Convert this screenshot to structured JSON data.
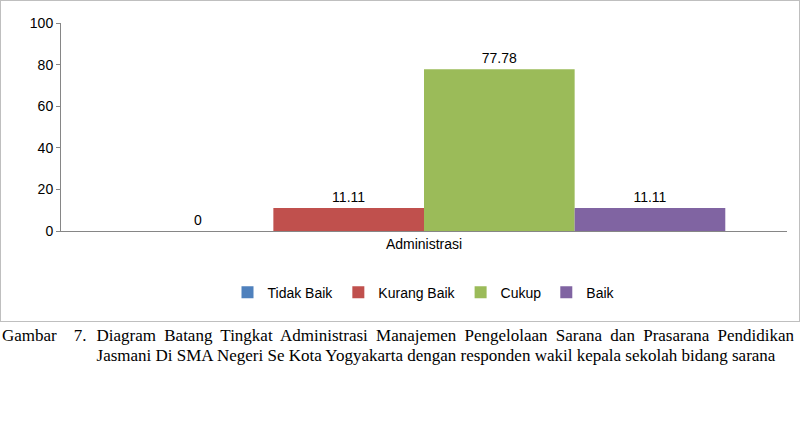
{
  "chart_data": {
    "type": "bar",
    "categories": [
      "Administrasi"
    ],
    "series": [
      {
        "name": "Tidak Baik",
        "color": "#4f81bd",
        "values": [
          0
        ]
      },
      {
        "name": "Kurang Baik",
        "color": "#c0504d",
        "values": [
          11.11
        ]
      },
      {
        "name": "Cukup",
        "color": "#9bbb59",
        "values": [
          77.78
        ]
      },
      {
        "name": "Baik",
        "color": "#8064a2",
        "values": [
          11.11
        ]
      }
    ],
    "ylim": [
      0,
      100
    ],
    "yticks": [
      0,
      20,
      40,
      60,
      80,
      100
    ],
    "grid": false,
    "legend": "bottom",
    "data_labels": true,
    "caption_label": "Gambar    7.",
    "caption": "Diagram Batang Tingkat Administrasi Manajemen Pengelolaan Sarana dan Prasarana Pendidikan Jasmani Di SMA Negeri Se Kota Yogyakarta dengan responden wakil kepala sekolah bidang sarana"
  }
}
